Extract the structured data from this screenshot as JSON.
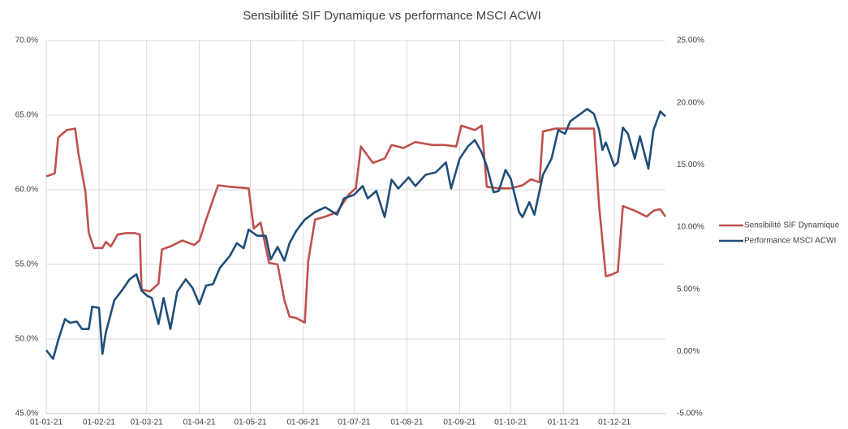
{
  "chart_data": {
    "type": "line",
    "title": "Sensibilité SIF Dynamique vs performance MSCI ACWI",
    "ylim": [
      45,
      70
    ],
    "yticks": [
      {
        "value": 45,
        "label": "45.0%"
      },
      {
        "value": 50,
        "label": "50.0%"
      },
      {
        "value": 55,
        "label": "55.0%"
      },
      {
        "value": 60,
        "label": "60.0%"
      },
      {
        "value": 65,
        "label": "65.0%"
      },
      {
        "value": 70,
        "label": "70.0%"
      }
    ],
    "y2lim": [
      -5,
      25
    ],
    "y2ticks": [
      {
        "value": -5,
        "label": "-5.00%"
      },
      {
        "value": 0,
        "label": "0.00%"
      },
      {
        "value": 5,
        "label": "5.00%"
      },
      {
        "value": 10,
        "label": "10.00%"
      },
      {
        "value": 15,
        "label": "15.00%"
      },
      {
        "value": 20,
        "label": "20.00%"
      },
      {
        "value": 25,
        "label": "25.00%"
      }
    ],
    "xlim": [
      "2021-01-01",
      "2021-12-31"
    ],
    "xticks": [
      {
        "value": "2021-01-01",
        "label": "01-01-21"
      },
      {
        "value": "2021-02-01",
        "label": "01-02-21"
      },
      {
        "value": "2021-03-01",
        "label": "01-03-21"
      },
      {
        "value": "2021-04-01",
        "label": "01-04-21"
      },
      {
        "value": "2021-05-01",
        "label": "01-05-21"
      },
      {
        "value": "2021-06-01",
        "label": "01-06-21"
      },
      {
        "value": "2021-07-01",
        "label": "01-07-21"
      },
      {
        "value": "2021-08-01",
        "label": "01-08-21"
      },
      {
        "value": "2021-09-01",
        "label": "01-09-21"
      },
      {
        "value": "2021-10-01",
        "label": "01-10-21"
      },
      {
        "value": "2021-11-01",
        "label": "01-11-21"
      },
      {
        "value": "2021-12-01",
        "label": "01-12-21"
      }
    ],
    "grid": true,
    "legend": "right",
    "series": [
      {
        "name": "Sensibilité SIF Dynamique",
        "color": "#c0504d",
        "x": [
          "2021-01-01",
          "2021-01-06",
          "2021-01-08",
          "2021-01-13",
          "2021-01-18",
          "2021-01-20",
          "2021-01-24",
          "2021-01-26",
          "2021-01-29",
          "2021-02-03",
          "2021-02-05",
          "2021-02-08",
          "2021-02-12",
          "2021-02-17",
          "2021-02-22",
          "2021-02-25",
          "2021-02-26",
          "2021-03-03",
          "2021-03-08",
          "2021-03-10",
          "2021-03-15",
          "2021-03-22",
          "2021-03-29",
          "2021-04-01",
          "2021-04-05",
          "2021-04-12",
          "2021-04-19",
          "2021-04-30",
          "2021-05-03",
          "2021-05-07",
          "2021-05-12",
          "2021-05-17",
          "2021-05-21",
          "2021-05-24",
          "2021-05-28",
          "2021-06-02",
          "2021-06-04",
          "2021-06-08",
          "2021-06-14",
          "2021-06-21",
          "2021-06-28",
          "2021-07-02",
          "2021-07-05",
          "2021-07-12",
          "2021-07-19",
          "2021-07-23",
          "2021-07-30",
          "2021-08-06",
          "2021-08-16",
          "2021-08-23",
          "2021-08-30",
          "2021-09-02",
          "2021-09-10",
          "2021-09-14",
          "2021-09-17",
          "2021-09-24",
          "2021-10-01",
          "2021-10-08",
          "2021-10-13",
          "2021-10-18",
          "2021-10-20",
          "2021-10-27",
          "2021-11-01",
          "2021-11-10",
          "2021-11-19",
          "2021-11-22",
          "2021-11-26",
          "2021-11-29",
          "2021-12-03",
          "2021-12-06",
          "2021-12-13",
          "2021-12-20",
          "2021-12-24",
          "2021-12-28",
          "2021-12-31"
        ],
        "values": [
          60.9,
          61.1,
          63.5,
          64.0,
          64.1,
          62.4,
          59.9,
          57.1,
          56.1,
          56.1,
          56.5,
          56.2,
          57.0,
          57.1,
          57.1,
          57.0,
          53.3,
          53.2,
          53.7,
          56.0,
          56.2,
          56.6,
          56.3,
          56.6,
          58.0,
          60.3,
          60.2,
          60.1,
          57.4,
          57.8,
          55.1,
          55.0,
          52.6,
          51.5,
          51.4,
          51.1,
          55.2,
          58.0,
          58.2,
          58.5,
          59.7,
          60.1,
          62.9,
          61.8,
          62.1,
          63.0,
          62.8,
          63.2,
          63.0,
          63.0,
          62.9,
          64.3,
          64.0,
          64.3,
          60.2,
          60.1,
          60.1,
          60.3,
          60.7,
          60.5,
          63.9,
          64.1,
          64.1,
          64.1,
          64.1,
          58.9,
          54.2,
          54.3,
          54.5,
          58.9,
          58.6,
          58.2,
          58.6,
          58.7,
          58.2
        ]
      },
      {
        "name": "Performance MSCI ACWI",
        "color": "#1f4e79",
        "axis": "y2",
        "x": [
          "2021-01-01",
          "2021-01-05",
          "2021-01-08",
          "2021-01-12",
          "2021-01-15",
          "2021-01-19",
          "2021-01-22",
          "2021-01-26",
          "2021-01-28",
          "2021-02-01",
          "2021-02-03",
          "2021-02-05",
          "2021-02-10",
          "2021-02-15",
          "2021-02-19",
          "2021-02-23",
          "2021-02-26",
          "2021-03-01",
          "2021-03-04",
          "2021-03-08",
          "2021-03-11",
          "2021-03-15",
          "2021-03-19",
          "2021-03-24",
          "2021-03-28",
          "2021-04-01",
          "2021-04-05",
          "2021-04-09",
          "2021-04-13",
          "2021-04-19",
          "2021-04-23",
          "2021-04-27",
          "2021-04-30",
          "2021-05-05",
          "2021-05-10",
          "2021-05-13",
          "2021-05-17",
          "2021-05-21",
          "2021-05-24",
          "2021-05-28",
          "2021-06-02",
          "2021-06-08",
          "2021-06-14",
          "2021-06-21",
          "2021-06-25",
          "2021-07-01",
          "2021-07-06",
          "2021-07-09",
          "2021-07-14",
          "2021-07-19",
          "2021-07-23",
          "2021-07-27",
          "2021-08-02",
          "2021-08-06",
          "2021-08-12",
          "2021-08-18",
          "2021-08-24",
          "2021-08-27",
          "2021-09-01",
          "2021-09-06",
          "2021-09-10",
          "2021-09-14",
          "2021-09-17",
          "2021-09-21",
          "2021-09-24",
          "2021-09-28",
          "2021-10-01",
          "2021-10-06",
          "2021-10-08",
          "2021-10-12",
          "2021-10-15",
          "2021-10-20",
          "2021-10-25",
          "2021-10-29",
          "2021-11-02",
          "2021-11-05",
          "2021-11-10",
          "2021-11-15",
          "2021-11-19",
          "2021-11-22",
          "2021-11-24",
          "2021-11-26",
          "2021-12-01",
          "2021-12-03",
          "2021-12-06",
          "2021-12-09",
          "2021-12-13",
          "2021-12-16",
          "2021-12-21",
          "2021-12-24",
          "2021-12-28",
          "2021-12-31"
        ],
        "values": [
          0.1,
          -0.6,
          0.9,
          2.6,
          2.3,
          2.4,
          1.8,
          1.8,
          3.6,
          3.5,
          -0.2,
          1.5,
          4.1,
          5.0,
          5.8,
          6.2,
          4.9,
          4.5,
          4.3,
          2.2,
          4.3,
          1.8,
          4.8,
          5.8,
          5.1,
          3.8,
          5.3,
          5.4,
          6.7,
          7.7,
          8.7,
          8.3,
          9.8,
          9.3,
          9.3,
          7.4,
          8.4,
          7.3,
          8.7,
          9.7,
          10.6,
          11.2,
          11.6,
          11.0,
          12.3,
          12.6,
          13.3,
          12.3,
          12.9,
          10.8,
          13.8,
          13.1,
          14.0,
          13.3,
          14.2,
          14.4,
          15.2,
          13.1,
          15.5,
          16.5,
          17.0,
          16.0,
          14.9,
          12.8,
          12.9,
          14.6,
          13.9,
          11.2,
          10.8,
          12.0,
          11.0,
          14.2,
          15.5,
          17.8,
          17.5,
          18.5,
          19.0,
          19.5,
          19.1,
          17.8,
          16.2,
          16.8,
          14.9,
          15.2,
          18.0,
          17.5,
          15.5,
          17.3,
          14.7,
          17.8,
          19.3,
          18.9
        ]
      }
    ]
  }
}
